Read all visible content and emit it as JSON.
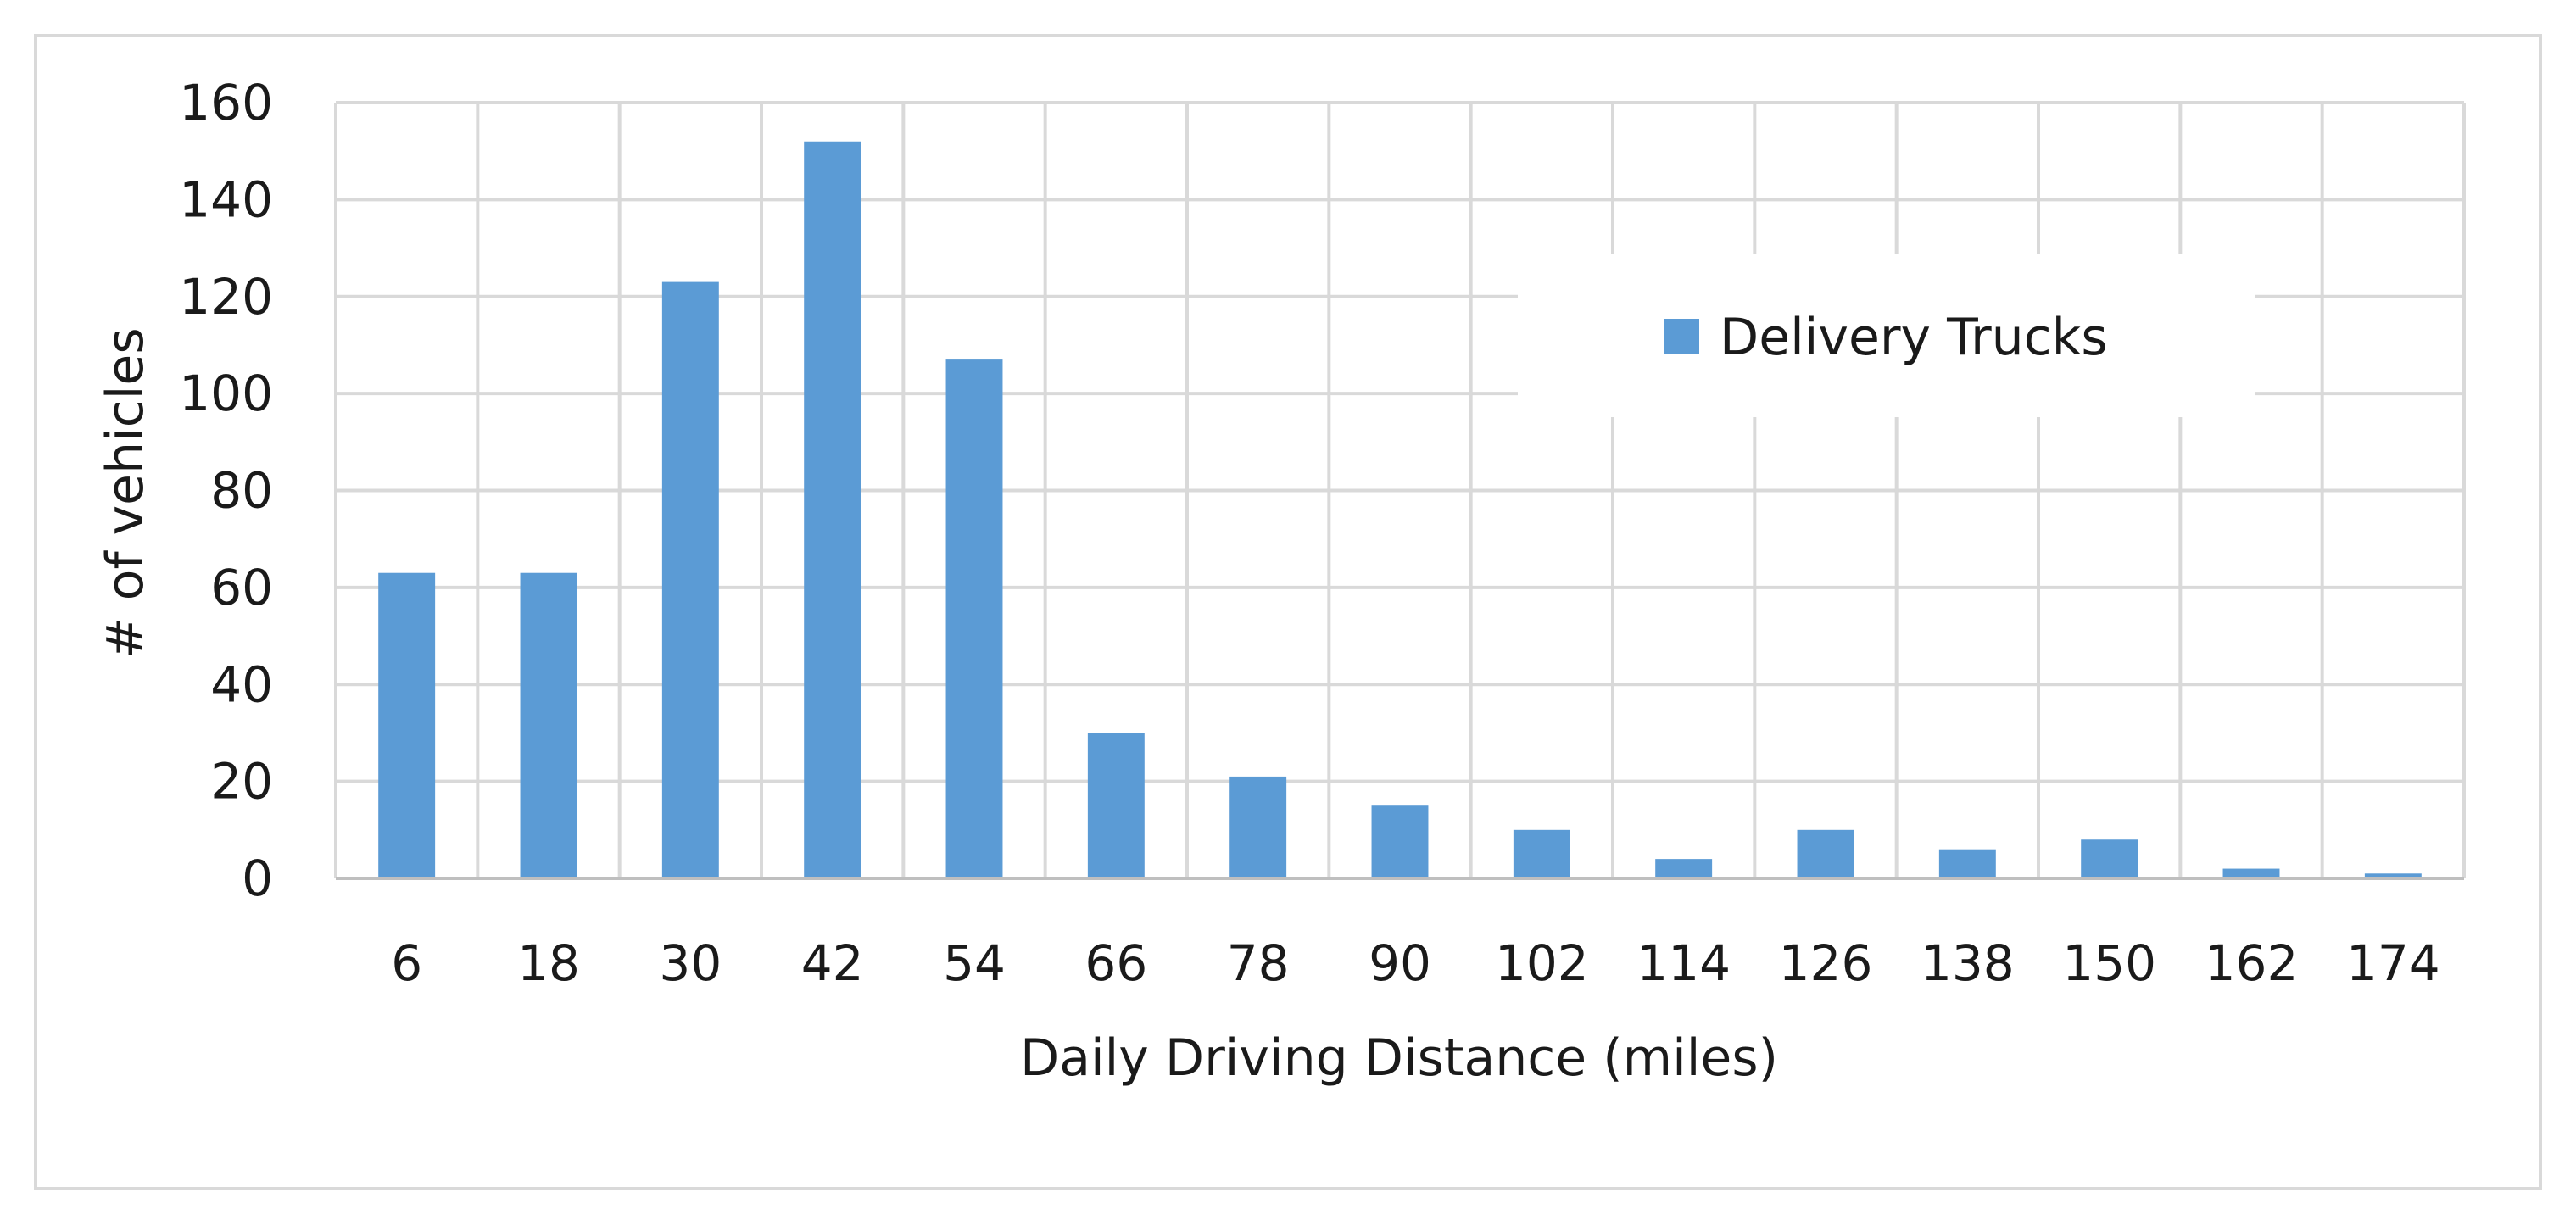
{
  "chart_data": {
    "type": "bar",
    "title": "",
    "xlabel": "Daily Driving Distance (miles)",
    "ylabel": "# of vehicles",
    "categories": [
      "6",
      "18",
      "30",
      "42",
      "54",
      "66",
      "78",
      "90",
      "102",
      "114",
      "126",
      "138",
      "150",
      "162",
      "174"
    ],
    "series": [
      {
        "name": "Delivery Trucks",
        "color": "#5b9bd5",
        "values": [
          63,
          63,
          123,
          152,
          107,
          30,
          21,
          15,
          10,
          4,
          10,
          6,
          8,
          2,
          1
        ]
      }
    ],
    "ylim": [
      0,
      160
    ],
    "yticks": [
      0,
      20,
      40,
      60,
      80,
      100,
      120,
      140,
      160
    ],
    "grid": true,
    "legend_position": "top-right"
  }
}
